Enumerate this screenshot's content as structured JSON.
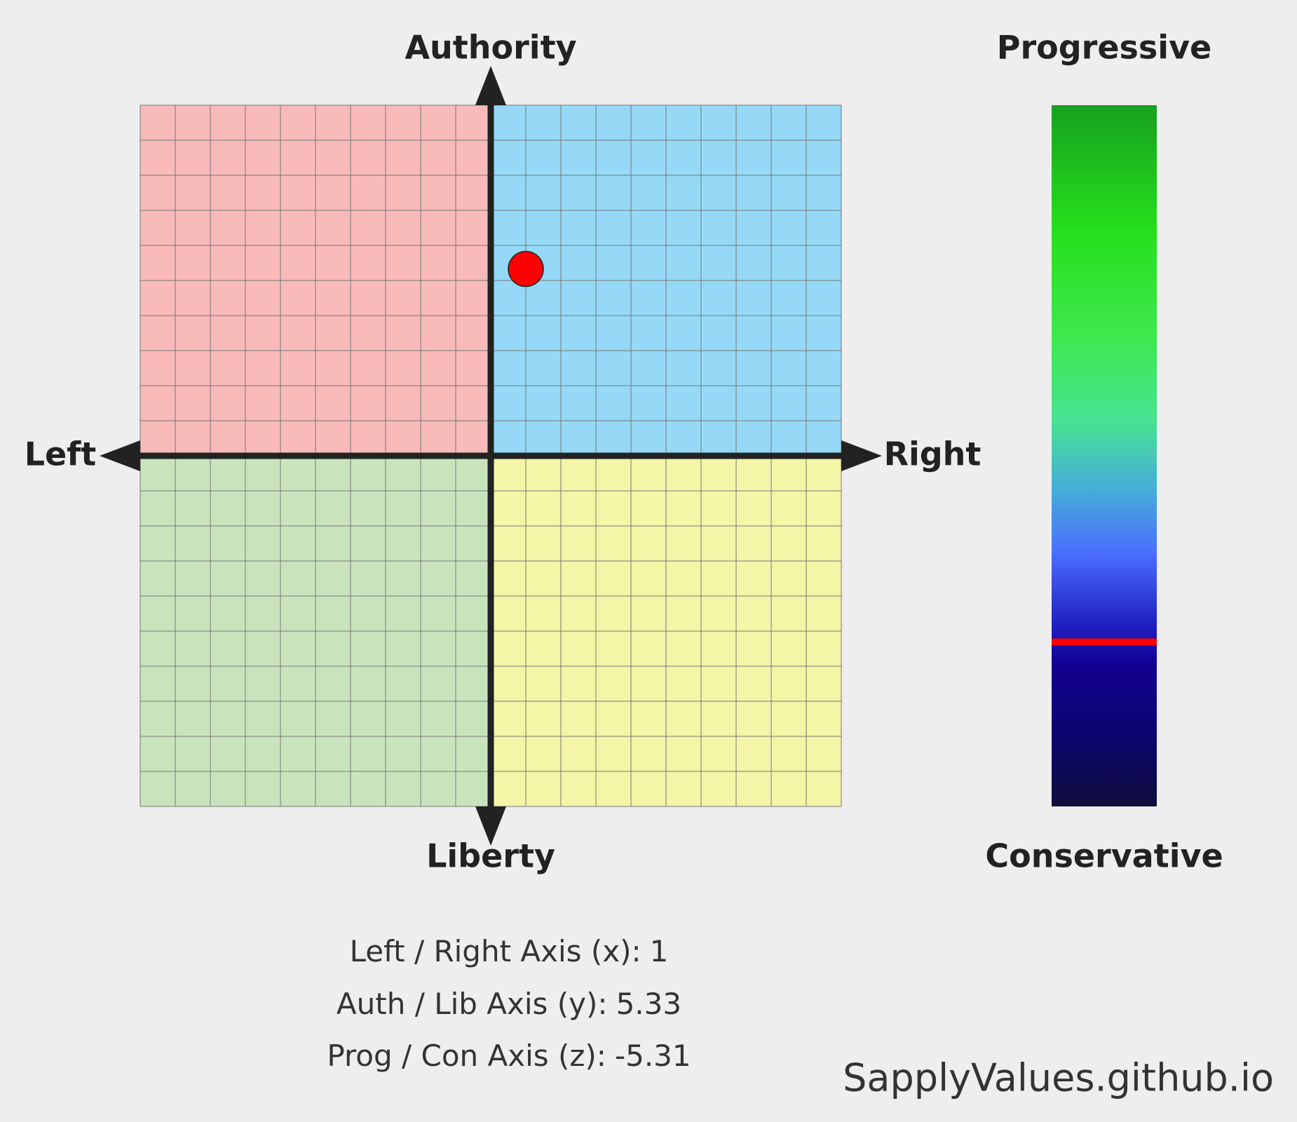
{
  "chart_data": {
    "type": "scatter",
    "label_top": "Authority",
    "label_bottom": "Liberty",
    "label_left": "Left",
    "label_right": "Right",
    "x": [
      1
    ],
    "y": [
      5.33
    ],
    "color": "#ff0000",
    "xlim": [
      -10,
      10
    ],
    "ylim": [
      -10,
      10
    ],
    "xticks": [
      -10,
      -9,
      -8,
      -7,
      -6,
      -5,
      -4,
      -3,
      -2,
      -1,
      0,
      1,
      2,
      3,
      4,
      5,
      6,
      7,
      8,
      9,
      10
    ],
    "yticks": [
      -10,
      -9,
      -8,
      -7,
      -6,
      -5,
      -4,
      -3,
      -2,
      -1,
      0,
      1,
      2,
      3,
      4,
      5,
      6,
      7,
      8,
      9,
      10
    ],
    "grid": true,
    "quadrant_colors": {
      "top_left": "#f9baba",
      "top_right": "#95d9f6",
      "bottom_left": "#c9e4bd",
      "bottom_right": "#f4f5a7"
    },
    "z": {
      "label_top": "Progressive",
      "label_bottom": "Conservative",
      "values": [
        -5.31
      ],
      "lim": [
        -10,
        10
      ],
      "color": "#ff0000"
    },
    "stats": [
      "Left / Right Axis (x):",
      "Auth / Lib Axis (y):",
      "Prog / Con Axis (z):"
    ],
    "footer": "SapplyValues.github.io"
  }
}
